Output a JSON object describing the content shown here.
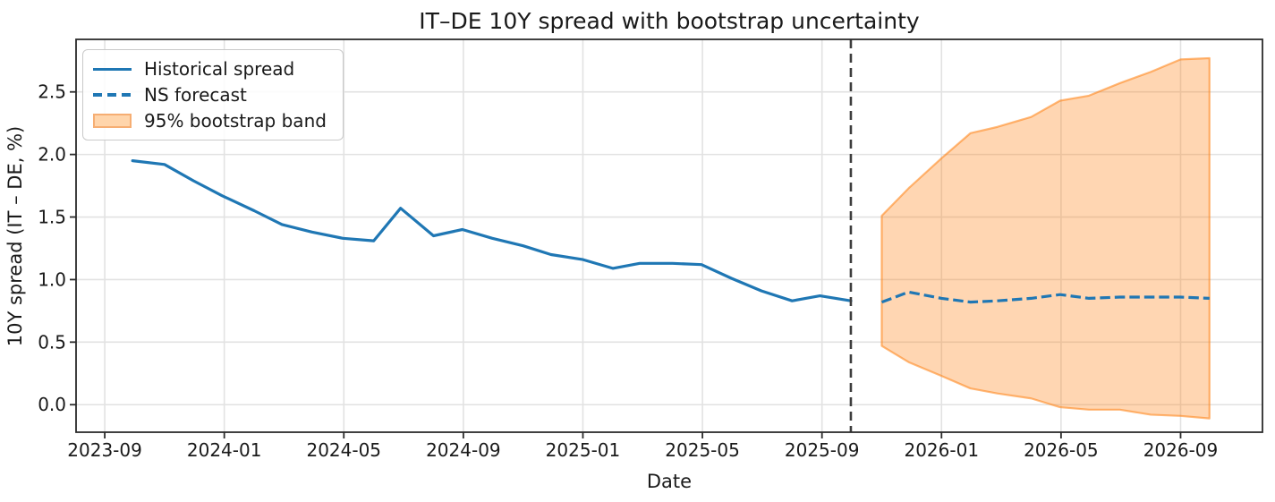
{
  "chart_data": {
    "type": "line",
    "title": "IT–DE 10Y spread with bootstrap uncertainty",
    "xlabel": "Date",
    "ylabel": "10Y spread (IT – DE, %)",
    "grid": true,
    "legend_position": "upper-left",
    "x_ticks": [
      "2023-09",
      "2024-01",
      "2024-05",
      "2024-09",
      "2025-01",
      "2025-05",
      "2025-09",
      "2026-01",
      "2026-05",
      "2026-09"
    ],
    "y_ticks": [
      "0.0",
      "0.5",
      "1.0",
      "1.5",
      "2.0",
      "2.5"
    ],
    "y_tick_values": [
      0.0,
      0.5,
      1.0,
      1.5,
      2.0,
      2.5
    ],
    "xlim_months": [
      -0.96,
      38.74
    ],
    "ylim": [
      -0.22,
      2.92
    ],
    "colors": {
      "line": "#1f77b4",
      "band": "#ff7f0e",
      "band_fill_rendered": "#ffd5ab",
      "band_edge_rendered": "#f6ae73",
      "vline": "#3d3d3d",
      "grid": "#e2e2e2",
      "spine": "#2b2b2b",
      "text": "#1a1a1a"
    },
    "vline": {
      "date": "2025-09-30",
      "style": "dashed"
    },
    "series": [
      {
        "name": "Historical spread",
        "type": "line",
        "style": "solid",
        "dates": [
          "2023-09-29",
          "2023-10-31",
          "2023-11-30",
          "2023-12-29",
          "2024-01-31",
          "2024-02-29",
          "2024-03-29",
          "2024-04-30",
          "2024-05-31",
          "2024-06-28",
          "2024-07-31",
          "2024-08-30",
          "2024-09-30",
          "2024-10-31",
          "2024-11-29",
          "2024-12-31",
          "2025-01-31",
          "2025-02-28",
          "2025-03-31",
          "2025-04-30",
          "2025-05-30",
          "2025-06-30",
          "2025-07-31",
          "2025-08-29",
          "2025-09-30"
        ],
        "values": [
          1.95,
          1.92,
          1.79,
          1.67,
          1.55,
          1.44,
          1.38,
          1.33,
          1.31,
          1.57,
          1.35,
          1.4,
          1.33,
          1.27,
          1.2,
          1.16,
          1.09,
          1.13,
          1.13,
          1.12,
          1.01,
          0.91,
          0.83,
          0.87,
          0.83
        ]
      },
      {
        "name": "NS forecast",
        "type": "line",
        "style": "dashed",
        "dates": [
          "2025-10-31",
          "2025-11-28",
          "2025-12-31",
          "2026-01-30",
          "2026-02-27",
          "2026-03-31",
          "2026-04-30",
          "2026-05-29",
          "2026-06-30",
          "2026-07-31",
          "2026-08-31",
          "2026-09-30"
        ],
        "values": [
          0.82,
          0.9,
          0.85,
          0.82,
          0.83,
          0.85,
          0.88,
          0.85,
          0.86,
          0.86,
          0.86,
          0.85
        ]
      },
      {
        "name": "95% bootstrap band",
        "type": "band",
        "dates": [
          "2025-10-31",
          "2025-11-28",
          "2025-12-31",
          "2026-01-30",
          "2026-02-27",
          "2026-03-31",
          "2026-04-30",
          "2026-05-29",
          "2026-06-30",
          "2026-07-31",
          "2026-08-31",
          "2026-09-30"
        ],
        "upper": [
          1.51,
          1.73,
          1.97,
          2.17,
          2.22,
          2.3,
          2.43,
          2.47,
          2.57,
          2.66,
          2.76,
          2.77
        ],
        "lower": [
          0.47,
          0.34,
          0.23,
          0.13,
          0.09,
          0.05,
          -0.02,
          -0.04,
          -0.04,
          -0.08,
          -0.09,
          -0.11
        ]
      }
    ]
  }
}
